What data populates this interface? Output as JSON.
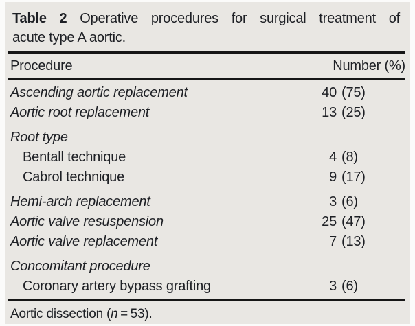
{
  "colors": {
    "panel_bg": "#e9e7e3",
    "text": "#1e2025",
    "rule": "#161616",
    "page_bg": "#fbfbfa"
  },
  "caption": {
    "label": "Table 2",
    "title_rest": "Operative procedures for surgical treatment of",
    "title_line2": "acute type A aortic."
  },
  "header": {
    "procedure": "Procedure",
    "number": "Number (%)"
  },
  "rows": [
    {
      "label": "Ascending aortic replacement",
      "count": "40",
      "pct": "(75)"
    },
    {
      "label": "Aortic root replacement",
      "count": "13",
      "pct": "(25)"
    },
    {
      "label": "Root type",
      "count": "",
      "pct": ""
    },
    {
      "label": "Bentall technique",
      "count": "4",
      "pct": "(8)"
    },
    {
      "label": "Cabrol technique",
      "count": "9",
      "pct": "(17)"
    },
    {
      "label": "Hemi-arch replacement",
      "count": "3",
      "pct": "(6)"
    },
    {
      "label": "Aortic valve resuspension",
      "count": "25",
      "pct": "(47)"
    },
    {
      "label": "Aortic valve replacement",
      "count": "7",
      "pct": "(13)"
    },
    {
      "label": "Concomitant procedure",
      "count": "",
      "pct": ""
    },
    {
      "label": "Coronary artery bypass grafting",
      "count": "3",
      "pct": "(6)"
    }
  ],
  "footnote": {
    "pre": "Aortic dissection (",
    "n_symbol": "n",
    "post": " = 53)."
  }
}
